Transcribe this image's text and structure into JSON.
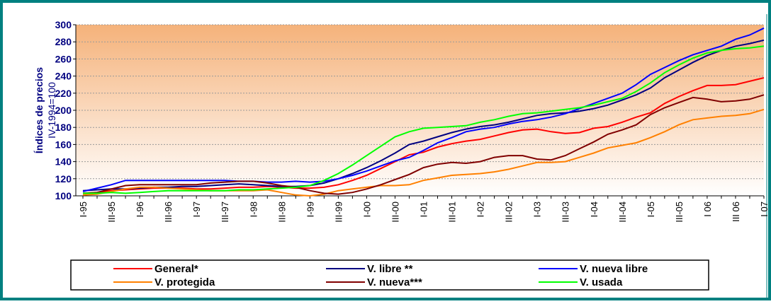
{
  "chart_data": {
    "type": "line",
    "y_label": "Índices de precios",
    "y_sublabel": "IV-1994=100",
    "categories": [
      "I-95",
      null,
      "III-95",
      null,
      "I-96",
      null,
      "III-96",
      null,
      "I-97",
      null,
      "III-97",
      null,
      "I-98",
      null,
      "III-98",
      null,
      "I-99",
      null,
      "III-99",
      null,
      "I-00",
      null,
      "III-00",
      null,
      "I-01",
      null,
      "III-01",
      null,
      "I-02",
      null,
      "III-02",
      null,
      "I-03",
      null,
      "III-03",
      null,
      "I-04",
      null,
      "III-04",
      null,
      "I-05",
      null,
      "III-05",
      null,
      "I 06",
      null,
      "III 06",
      null,
      "I 07"
    ],
    "ylim": [
      100,
      300
    ],
    "yticks": [
      100,
      120,
      140,
      160,
      180,
      200,
      220,
      240,
      260,
      280,
      300
    ],
    "grid": true,
    "series": [
      {
        "name": "General*",
        "color": "#ff0000",
        "values": [
          103,
          104,
          106,
          107,
          108,
          109,
          109,
          109,
          108,
          108,
          109,
          110,
          110,
          111,
          110,
          109,
          109,
          110,
          113,
          118,
          124,
          132,
          140,
          148,
          151,
          157,
          161,
          164,
          166,
          170,
          174,
          177,
          178,
          175,
          173,
          174,
          179,
          181,
          186,
          192,
          197,
          208,
          216,
          223,
          229,
          229,
          230,
          234,
          238
        ]
      },
      {
        "name": "V. libre **",
        "color": "#000080",
        "values": [
          106,
          107,
          108,
          108,
          109,
          110,
          110,
          111,
          111,
          112,
          113,
          114,
          113,
          112,
          111,
          111,
          112,
          115,
          120,
          126,
          133,
          141,
          150,
          160,
          164,
          169,
          174,
          178,
          181,
          183,
          186,
          190,
          194,
          196,
          197,
          199,
          202,
          206,
          212,
          218,
          226,
          238,
          247,
          256,
          264,
          270,
          275,
          278,
          282
        ]
      },
      {
        "name": "V. nueva libre",
        "color": "#0000ff",
        "values": [
          105,
          109,
          113,
          118,
          118,
          118,
          118,
          118,
          118,
          118,
          118,
          117,
          117,
          116,
          116,
          117,
          116,
          117,
          120,
          124,
          129,
          135,
          141,
          145,
          153,
          162,
          168,
          175,
          178,
          180,
          184,
          187,
          189,
          192,
          196,
          202,
          208,
          214,
          220,
          230,
          242,
          250,
          258,
          265,
          270,
          275,
          283,
          288,
          296
        ]
      },
      {
        "name": "V. protegida",
        "color": "#ff8000",
        "values": [
          101,
          102,
          105,
          108,
          110,
          110,
          109,
          108,
          107,
          106,
          106,
          106,
          106,
          107,
          104,
          101,
          100,
          102,
          106,
          108,
          110,
          112,
          112,
          113,
          118,
          121,
          124,
          125,
          126,
          128,
          131,
          135,
          139,
          139,
          140,
          145,
          150,
          156,
          159,
          162,
          168,
          175,
          183,
          189,
          191,
          193,
          194,
          196,
          201
        ]
      },
      {
        "name": "V. nueva***",
        "color": "#800000",
        "values": [
          103,
          104,
          108,
          112,
          113,
          113,
          113,
          113,
          113,
          115,
          116,
          117,
          117,
          115,
          112,
          110,
          106,
          103,
          102,
          104,
          108,
          113,
          119,
          125,
          133,
          137,
          139,
          138,
          140,
          145,
          147,
          147,
          143,
          142,
          147,
          155,
          163,
          172,
          177,
          183,
          195,
          203,
          209,
          215,
          213,
          210,
          211,
          213,
          218
        ]
      },
      {
        "name": "V. usada",
        "color": "#00ff00",
        "values": [
          103,
          103,
          104,
          103,
          104,
          105,
          106,
          106,
          106,
          106,
          106,
          107,
          107,
          108,
          109,
          110,
          112,
          118,
          126,
          136,
          147,
          158,
          169,
          175,
          179,
          180,
          181,
          182,
          186,
          189,
          193,
          196,
          197,
          199,
          201,
          203,
          206,
          210,
          214,
          222,
          232,
          244,
          253,
          261,
          267,
          270,
          272,
          273,
          275
        ]
      }
    ]
  }
}
